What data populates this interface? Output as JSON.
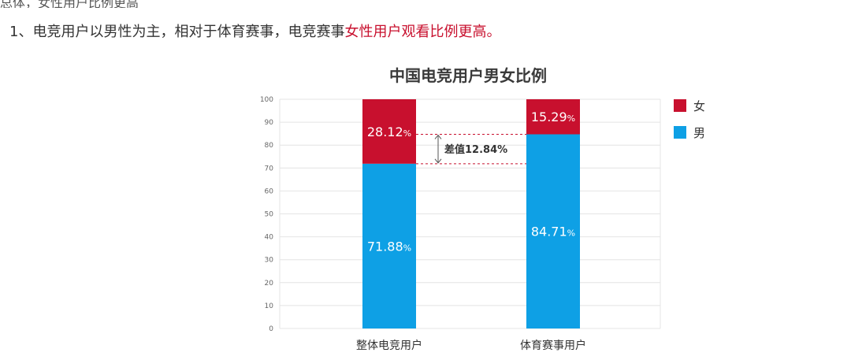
{
  "top_strip_text": "总体，女性用户比例更高",
  "intro": {
    "prefix": "1、电竞用户以男性为主，相对于体育赛事，电竞赛事",
    "highlight": "女性用户观看比例更高。"
  },
  "colors": {
    "male": "#0ea0e5",
    "female": "#c8102e",
    "annotation": "#c8102e"
  },
  "chart_data": {
    "type": "bar",
    "stacked": true,
    "title": "中国电竞用户男女比例",
    "categories": [
      "整体电竞用户",
      "体育赛事用户"
    ],
    "series": [
      {
        "name": "男",
        "values": [
          71.88,
          84.71
        ],
        "labels": [
          "71.88",
          "84.71"
        ]
      },
      {
        "name": "女",
        "values": [
          28.12,
          15.29
        ],
        "labels": [
          "28.12",
          "15.29"
        ]
      }
    ],
    "value_suffix": "%",
    "ylim": [
      0,
      100
    ],
    "yticks": [
      0,
      10,
      20,
      30,
      40,
      50,
      60,
      70,
      80,
      90,
      100
    ],
    "grid": true,
    "legend_position": "right",
    "annotation": {
      "text": "差值12.84%",
      "from": 71.88,
      "to": 84.71
    }
  }
}
